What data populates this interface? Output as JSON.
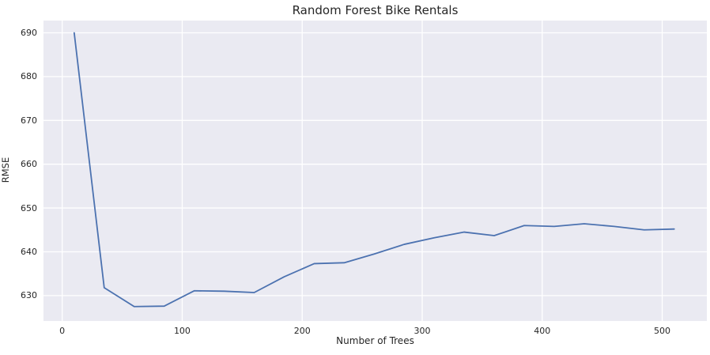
{
  "title": "Random Forest Bike Rentals",
  "colors": {
    "figure_bg": "#ffffff",
    "plot_bg": "#eaeaf2",
    "grid": "#ffffff",
    "line": "#4c72b0",
    "text": "#262626"
  },
  "chart_data": {
    "type": "line",
    "title": "Random Forest Bike Rentals",
    "xlabel": "Number of Trees",
    "ylabel": "RMSE",
    "x": [
      10,
      35,
      60,
      85,
      110,
      135,
      160,
      185,
      210,
      235,
      260,
      285,
      310,
      335,
      360,
      385,
      410,
      435,
      460,
      485,
      510
    ],
    "series": [
      {
        "name": "RMSE",
        "values": [
          690.0,
          631.8,
          627.5,
          627.6,
          631.1,
          631.0,
          630.7,
          634.3,
          637.3,
          637.5,
          639.5,
          641.7,
          643.2,
          644.5,
          643.7,
          646.0,
          645.8,
          646.4,
          645.8,
          645.0,
          645.2
        ]
      }
    ],
    "xticks": [
      0,
      100,
      200,
      300,
      400,
      500
    ],
    "yticks": [
      630,
      640,
      650,
      660,
      670,
      680,
      690
    ],
    "xlim": [
      -15.6,
      537.2
    ],
    "ylim": [
      624.2,
      692.8
    ],
    "grid": true,
    "legend": false
  }
}
